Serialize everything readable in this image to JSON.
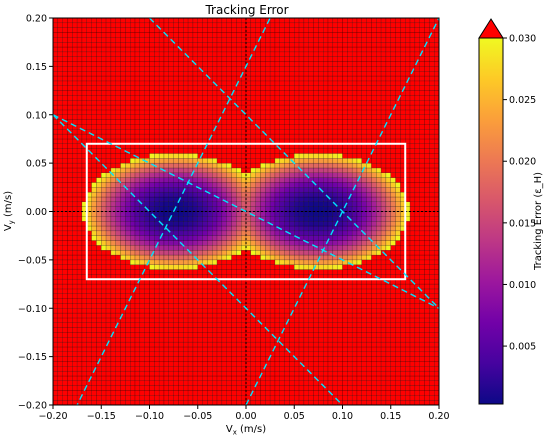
{
  "chart_data": {
    "type": "heatmap",
    "title": "Tracking Error",
    "xlabel_main": "V",
    "xlabel_sub": "x",
    "xlabel_unit": " (m/s)",
    "ylabel_main": "V",
    "ylabel_sub": "y",
    "ylabel_unit": " (m/s)",
    "xlim": [
      -0.2,
      0.2
    ],
    "ylim": [
      -0.2,
      0.2
    ],
    "xticks": [
      "−0.20",
      "−0.15",
      "−0.10",
      "−0.05",
      "0.00",
      "0.05",
      "0.10",
      "0.15",
      "0.20"
    ],
    "yticks": [
      "−0.20",
      "−0.15",
      "−0.10",
      "−0.05",
      "0.00",
      "0.05",
      "0.10",
      "0.15",
      "0.20"
    ],
    "xtick_values": [
      -0.2,
      -0.15,
      -0.1,
      -0.05,
      0.0,
      0.05,
      0.1,
      0.15,
      0.2
    ],
    "ytick_values": [
      -0.2,
      -0.15,
      -0.1,
      -0.05,
      0.0,
      0.05,
      0.1,
      0.15,
      0.2
    ],
    "grid": {
      "nx": 80,
      "ny": 80,
      "cell_edge_color": "#000000"
    },
    "field": {
      "description_of_mapping": "colormap plasma, values above max clipped",
      "vmin": 0.0003,
      "vmax": 0.03,
      "blob_centers_x": [
        -0.074,
        0.074
      ],
      "blob_sigma_x": 0.073,
      "blob_sigma_y": 0.046,
      "base_level": 0.0003,
      "outer_rise": 0.034
    },
    "colorbar": {
      "label": "Tracking Error (ε_H)",
      "ticks": [
        "0.005",
        "0.010",
        "0.015",
        "0.020",
        "0.025",
        "0.030"
      ],
      "tick_values": [
        0.005,
        0.01,
        0.015,
        0.02,
        0.025,
        0.03
      ],
      "extend": "max",
      "extend_color": "#ff0000",
      "stops": [
        "#0d0887",
        "#46039f",
        "#7201a8",
        "#9c179e",
        "#bd3786",
        "#d8576b",
        "#ed7953",
        "#fb9f3a",
        "#fdca26",
        "#f0f921"
      ]
    },
    "rectangle": {
      "x": [
        -0.165,
        0.165
      ],
      "y": [
        -0.07,
        0.07
      ],
      "color": "#ffffff"
    },
    "dashed_lines": [
      {
        "x1": -0.2,
        "y1": 0.1,
        "x2": 0.2,
        "y2": -0.1,
        "color": "#00e5ff"
      },
      {
        "x1": -0.2,
        "y1": 0.1,
        "x2": 0.1,
        "y2": -0.2,
        "color": "#00e5ff"
      },
      {
        "x1": -0.1,
        "y1": 0.2,
        "x2": 0.2,
        "y2": -0.1,
        "color": "#00e5ff"
      },
      {
        "x1": -0.2,
        "y1": -0.25,
        "x2": 0.05,
        "y2": 0.25,
        "color": "#00e5ff"
      },
      {
        "x1": 0.0,
        "y1": -0.2,
        "x2": 0.2,
        "y2": 0.2,
        "color": "#00e5ff"
      }
    ],
    "zero_lines": {
      "color": "#000000"
    }
  }
}
